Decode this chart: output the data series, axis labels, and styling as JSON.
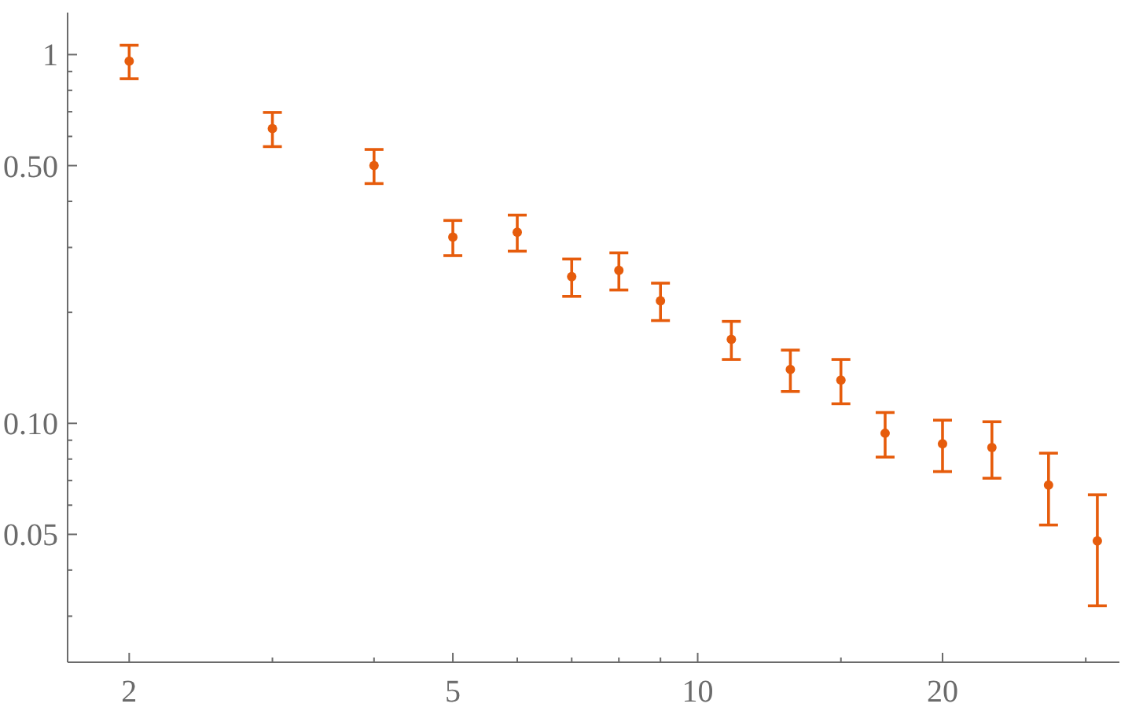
{
  "chart_data": {
    "type": "scatter",
    "x": [
      2,
      3,
      4,
      5,
      6,
      7,
      8,
      9,
      11,
      13,
      15,
      17,
      20,
      23,
      27,
      31
    ],
    "values": [
      0.96,
      0.63,
      0.5,
      0.32,
      0.33,
      0.25,
      0.26,
      0.215,
      0.169,
      0.14,
      0.131,
      0.094,
      0.088,
      0.086,
      0.068,
      0.048
    ],
    "errors": [
      0.1,
      0.067,
      0.053,
      0.035,
      0.037,
      0.029,
      0.03,
      0.025,
      0.02,
      0.018,
      0.018,
      0.013,
      0.014,
      0.015,
      0.015,
      0.016
    ],
    "color": "#e65c0c",
    "marker": "circle",
    "log": "xy",
    "xlim": [
      1.68,
      33
    ],
    "ylim": [
      0.0225,
      1.3
    ],
    "xticks": [
      2,
      {
        "value": 3,
        "label": null
      },
      {
        "value": 4,
        "label": null
      },
      5,
      {
        "value": 6,
        "label": null
      },
      {
        "value": 7,
        "label": null
      },
      {
        "value": 8,
        "label": null
      },
      {
        "value": 9,
        "label": null
      },
      10,
      {
        "value": 15,
        "label": null
      },
      20,
      {
        "value": 30,
        "label": null
      }
    ],
    "yticks": [
      {
        "value": 0.03,
        "label": null
      },
      {
        "value": 0.04,
        "label": null
      },
      0.05,
      {
        "value": 0.06,
        "label": null
      },
      {
        "value": 0.07,
        "label": null
      },
      {
        "value": 0.08,
        "label": null
      },
      {
        "value": 0.09,
        "label": null
      },
      {
        "value": 0.1,
        "label": "0.10"
      },
      {
        "value": 0.2,
        "label": null
      },
      {
        "value": 0.3,
        "label": null
      },
      {
        "value": 0.4,
        "label": null
      },
      {
        "value": 0.5,
        "label": "0.50"
      },
      {
        "value": 0.6,
        "label": null
      },
      {
        "value": 0.7,
        "label": null
      },
      {
        "value": 0.8,
        "label": null
      },
      {
        "value": 0.9,
        "label": null
      },
      1
    ]
  }
}
